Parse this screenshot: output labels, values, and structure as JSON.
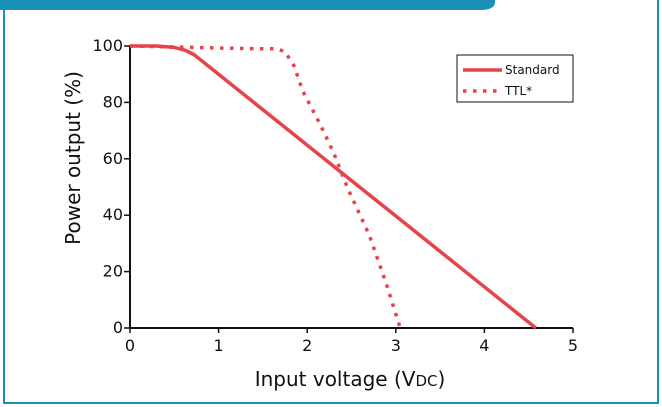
{
  "theme": {
    "header_color": "#1a8fb8",
    "border_color": "#1a8fb8",
    "series_color": "#e8424a",
    "axis_color": "#111111"
  },
  "chart_data": {
    "type": "line",
    "xlabel": "Input voltage (VDC)",
    "ylabel": "Power output (%)",
    "xlim": [
      0,
      5
    ],
    "ylim": [
      0,
      100
    ],
    "x_ticks": [
      0,
      1,
      2,
      3,
      4,
      5
    ],
    "y_ticks": [
      0,
      20,
      40,
      60,
      80,
      100
    ],
    "grid": false,
    "legend_position": "top-right",
    "series": [
      {
        "name": "Standard",
        "style": "solid",
        "color": "#e8424a",
        "points": [
          [
            0,
            100
          ],
          [
            0.3,
            100
          ],
          [
            0.5,
            99.5
          ],
          [
            0.62,
            98.5
          ],
          [
            0.72,
            97
          ],
          [
            0.8,
            95
          ],
          [
            4.58,
            0
          ]
        ]
      },
      {
        "name": "TTL*",
        "style": "dotted",
        "color": "#e8424a",
        "points": [
          [
            0,
            100
          ],
          [
            1.0,
            99.3
          ],
          [
            1.5,
            99
          ],
          [
            1.65,
            99
          ],
          [
            1.75,
            98
          ],
          [
            1.85,
            93
          ],
          [
            1.95,
            84
          ],
          [
            2.15,
            72
          ],
          [
            2.3,
            62
          ],
          [
            2.45,
            50
          ],
          [
            2.7,
            33
          ],
          [
            2.9,
            15
          ],
          [
            3.05,
            0
          ]
        ]
      }
    ]
  }
}
